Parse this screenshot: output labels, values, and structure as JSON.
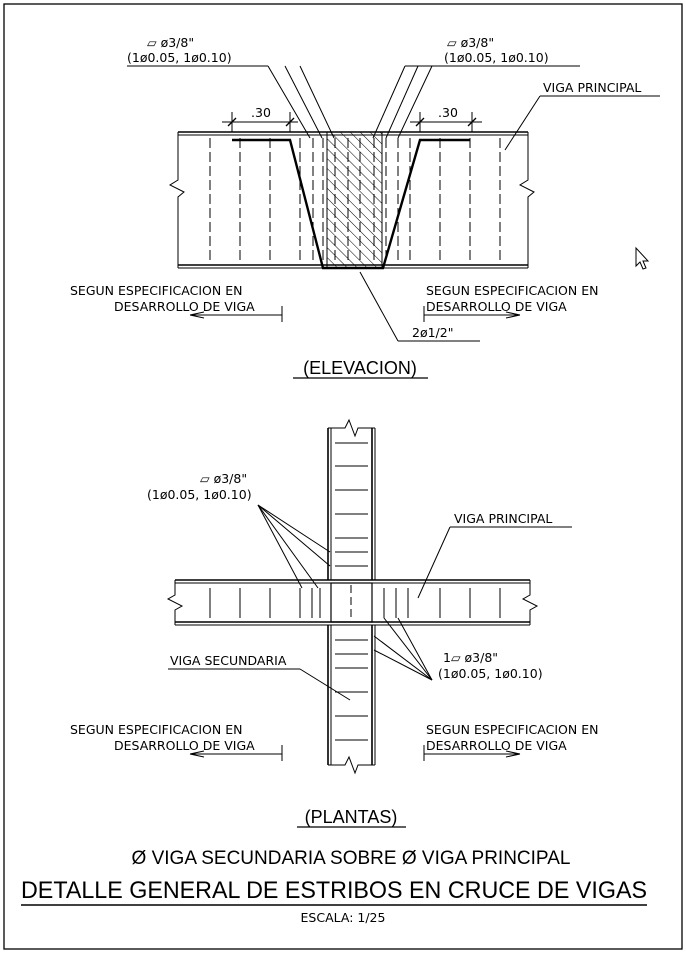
{
  "elevation": {
    "stirrup_left": {
      "bar": "▱ ø3/8\"",
      "spacing": "(1ø0.05,  1ø0.10)"
    },
    "stirrup_right": {
      "bar": "▱ ø3/8\"",
      "spacing": "(1ø0.05,  1ø0.10)"
    },
    "dim_left": ".30",
    "dim_right": ".30",
    "main_beam": "VIGA  PRINCIPAL",
    "spec_left": [
      "SEGUN  ESPECIFICACION  EN",
      "DESARROLLO  DE  VIGA"
    ],
    "spec_right": [
      "SEGUN  ESPECIFICACION  EN",
      "DESARROLLO  DE  VIGA"
    ],
    "rebar": "2ø1/2\"",
    "caption": "(ELEVACION)"
  },
  "plan": {
    "stirrup_left": {
      "bar": "▱   ø3/8\"",
      "spacing": "(1ø0.05,  1ø0.10)"
    },
    "stirrup_right": {
      "bar": "1▱   ø3/8\"",
      "spacing": "(1ø0.05,  1ø0.10)"
    },
    "main_beam": "VIGA  PRINCIPAL",
    "secondary_beam": "VIGA  SECUNDARIA",
    "spec_left": [
      "SEGUN  ESPECIFICACION  EN",
      "DESARROLLO  DE  VIGA"
    ],
    "spec_right": [
      "SEGUN  ESPECIFICACION  EN",
      "DESARROLLO  DE  VIGA"
    ],
    "caption": "(PLANTAS)"
  },
  "footer": {
    "subtitle": "Ø VIGA SECUNDARIA SOBRE Ø VIGA PRINCIPAL",
    "title": "DETALLE GENERAL DE ESTRIBOS EN CRUCE DE VIGAS",
    "scale": "ESCALA:  1/25"
  }
}
